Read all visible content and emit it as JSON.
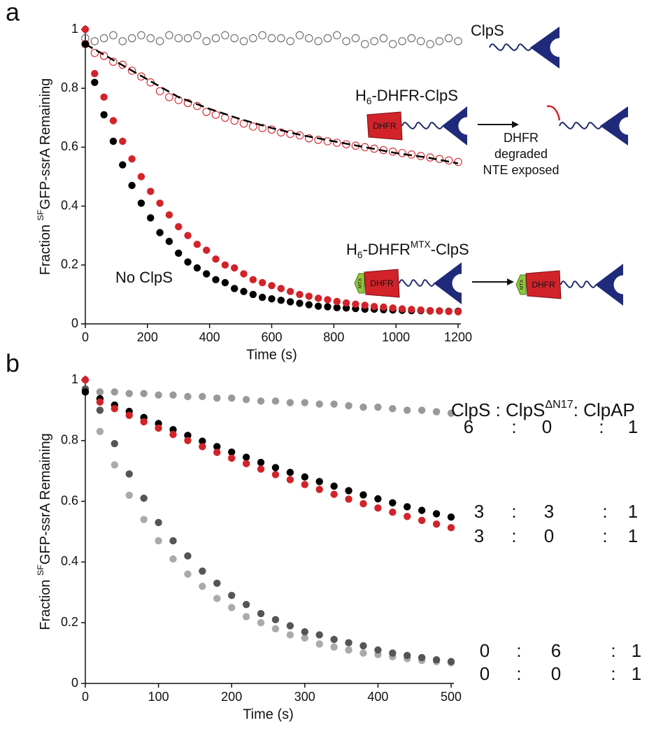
{
  "chart_data": [
    {
      "type": "scatter",
      "panel": "a",
      "ylabel": [
        {
          "text": "Fraction "
        },
        {
          "text": "SF",
          "sup": true
        },
        {
          "text": "GFP-ssrA Remaining"
        }
      ],
      "xlabel": "Time (s)",
      "xlim": [
        0,
        1200
      ],
      "xticks": [
        0,
        200,
        400,
        600,
        800,
        1000,
        1200
      ],
      "ylim": [
        0,
        1
      ],
      "yticks": [
        0,
        0.2,
        0.4,
        0.6,
        0.8,
        1
      ],
      "x": [
        0,
        30,
        60,
        90,
        120,
        150,
        180,
        210,
        240,
        270,
        300,
        330,
        360,
        390,
        420,
        450,
        480,
        510,
        540,
        570,
        600,
        630,
        660,
        690,
        720,
        750,
        780,
        810,
        840,
        870,
        900,
        930,
        960,
        990,
        1020,
        1050,
        1080,
        1110,
        1140,
        1170,
        1200
      ],
      "series": [
        {
          "name": [
            {
              "text": "ClpS"
            }
          ],
          "color": "#666666",
          "marker": "open",
          "values": [
            0.97,
            0.96,
            0.97,
            0.98,
            0.96,
            0.97,
            0.98,
            0.97,
            0.96,
            0.98,
            0.97,
            0.97,
            0.98,
            0.96,
            0.97,
            0.98,
            0.97,
            0.96,
            0.97,
            0.98,
            0.97,
            0.97,
            0.96,
            0.98,
            0.97,
            0.96,
            0.97,
            0.98,
            0.96,
            0.97,
            0.95,
            0.96,
            0.97,
            0.95,
            0.96,
            0.97,
            0.96,
            0.95,
            0.96,
            0.97,
            0.96
          ]
        },
        {
          "name": [
            {
              "text": "H"
            },
            {
              "text": "6",
              "sub": true
            },
            {
              "text": "-DHFR-ClpS"
            }
          ],
          "color": "#d2232a",
          "marker": "open",
          "values": [
            0.95,
            0.92,
            0.91,
            0.89,
            0.88,
            0.86,
            0.84,
            0.82,
            0.79,
            0.77,
            0.76,
            0.75,
            0.74,
            0.72,
            0.71,
            0.7,
            0.69,
            0.68,
            0.67,
            0.665,
            0.66,
            0.65,
            0.645,
            0.64,
            0.63,
            0.625,
            0.62,
            0.615,
            0.61,
            0.605,
            0.6,
            0.595,
            0.59,
            0.585,
            0.58,
            0.575,
            0.57,
            0.565,
            0.56,
            0.555,
            0.55
          ],
          "fit": {
            "color": "#000000",
            "x": [
              0,
              100,
              200,
              300,
              400,
              500,
              600,
              700,
              800,
              900,
              1000,
              1100,
              1200
            ],
            "values": [
              0.95,
              0.89,
              0.83,
              0.77,
              0.73,
              0.695,
              0.665,
              0.64,
              0.62,
              0.6,
              0.58,
              0.565,
              0.545
            ]
          }
        },
        {
          "name": [
            {
              "text": "No ClpS"
            }
          ],
          "color": "#000000",
          "marker": "filled",
          "values": [
            0.95,
            0.82,
            0.71,
            0.62,
            0.54,
            0.47,
            0.41,
            0.36,
            0.31,
            0.28,
            0.24,
            0.21,
            0.19,
            0.17,
            0.15,
            0.14,
            0.12,
            0.11,
            0.1,
            0.09,
            0.085,
            0.08,
            0.075,
            0.07,
            0.065,
            0.06,
            0.058,
            0.055,
            0.054,
            0.052,
            0.05,
            0.05,
            0.048,
            0.047,
            0.046,
            0.045,
            0.045,
            0.044,
            0.044,
            0.043,
            0.043
          ]
        },
        {
          "name": [
            {
              "text": "H"
            },
            {
              "text": "6",
              "sub": true
            },
            {
              "text": "-DHFR"
            },
            {
              "text": "MTX",
              "sup": true
            },
            {
              "text": "-ClpS"
            }
          ],
          "color": "#d2232a",
          "marker": "filled",
          "values": [
            1,
            0.85,
            0.77,
            0.69,
            0.62,
            0.56,
            0.5,
            0.45,
            0.41,
            0.37,
            0.33,
            0.3,
            0.27,
            0.25,
            0.22,
            0.2,
            0.19,
            0.17,
            0.15,
            0.14,
            0.13,
            0.12,
            0.11,
            0.1,
            0.094,
            0.087,
            0.082,
            0.076,
            0.071,
            0.067,
            0.063,
            0.059,
            0.057,
            0.054,
            0.051,
            0.049,
            0.047,
            0.045,
            0.044,
            0.042,
            0.041
          ]
        }
      ],
      "cartoon_texts": {
        "dhfr": "DHFR",
        "mtx": "MTX"
      },
      "arrow_note": [
        "DHFR",
        "degraded",
        "NTE exposed"
      ]
    },
    {
      "type": "scatter",
      "panel": "b",
      "ylabel": [
        {
          "text": "Fraction "
        },
        {
          "text": "SF",
          "sup": true
        },
        {
          "text": "GFP-ssrA Remaining"
        }
      ],
      "xlabel": "Time (s)",
      "xlim": [
        0,
        500
      ],
      "xticks": [
        0,
        100,
        200,
        300,
        400,
        500
      ],
      "ylim": [
        0,
        1
      ],
      "yticks": [
        0,
        0.2,
        0.4,
        0.6,
        0.8,
        1
      ],
      "x": [
        0,
        20,
        40,
        60,
        80,
        100,
        120,
        140,
        160,
        180,
        200,
        220,
        240,
        260,
        280,
        300,
        320,
        340,
        360,
        380,
        400,
        420,
        440,
        460,
        480,
        500
      ],
      "header": [
        {
          "text": "ClpS : ClpS"
        },
        {
          "text": "ΔN17",
          "sup": true
        },
        {
          "text": ": ClpAP"
        }
      ],
      "ratio_separator": ":",
      "series": [
        {
          "ratio": [
            6,
            0,
            1
          ],
          "color": "#999999",
          "text_color": "#666666",
          "values": [
            0.97,
            0.96,
            0.96,
            0.955,
            0.955,
            0.95,
            0.95,
            0.945,
            0.945,
            0.94,
            0.94,
            0.935,
            0.93,
            0.93,
            0.925,
            0.925,
            0.92,
            0.92,
            0.915,
            0.91,
            0.91,
            0.905,
            0.9,
            0.9,
            0.895,
            0.89
          ]
        },
        {
          "ratio": [
            3,
            3,
            1
          ],
          "color": "#000000",
          "text_color": "#000000",
          "values": [
            0.96,
            0.938,
            0.917,
            0.896,
            0.876,
            0.856,
            0.836,
            0.817,
            0.798,
            0.78,
            0.762,
            0.745,
            0.728,
            0.711,
            0.695,
            0.68,
            0.665,
            0.65,
            0.635,
            0.621,
            0.608,
            0.595,
            0.582,
            0.57,
            0.559,
            0.548
          ]
        },
        {
          "ratio": [
            3,
            0,
            1
          ],
          "color": "#d2232a",
          "text_color": "#d2232a",
          "values": [
            1,
            0.927,
            0.905,
            0.883,
            0.862,
            0.841,
            0.82,
            0.8,
            0.78,
            0.761,
            0.742,
            0.724,
            0.706,
            0.688,
            0.671,
            0.655,
            0.639,
            0.623,
            0.607,
            0.592,
            0.578,
            0.564,
            0.55,
            0.537,
            0.525,
            0.513
          ]
        },
        {
          "ratio": [
            0,
            6,
            1
          ],
          "color": "#555555",
          "text_color": "#222222",
          "values": [
            0.97,
            0.9,
            0.79,
            0.69,
            0.61,
            0.53,
            0.47,
            0.42,
            0.37,
            0.33,
            0.29,
            0.26,
            0.23,
            0.21,
            0.19,
            0.17,
            0.16,
            0.145,
            0.134,
            0.124,
            0.11,
            0.1,
            0.092,
            0.085,
            0.078,
            0.072
          ]
        },
        {
          "ratio": [
            0,
            0,
            1
          ],
          "color": "#aaaaaa",
          "text_color": "#777777",
          "values": [
            0.96,
            0.83,
            0.72,
            0.62,
            0.54,
            0.47,
            0.41,
            0.36,
            0.32,
            0.28,
            0.25,
            0.22,
            0.2,
            0.18,
            0.16,
            0.15,
            0.13,
            0.12,
            0.11,
            0.1,
            0.095,
            0.088,
            0.082,
            0.076,
            0.072,
            0.068
          ]
        }
      ]
    }
  ]
}
